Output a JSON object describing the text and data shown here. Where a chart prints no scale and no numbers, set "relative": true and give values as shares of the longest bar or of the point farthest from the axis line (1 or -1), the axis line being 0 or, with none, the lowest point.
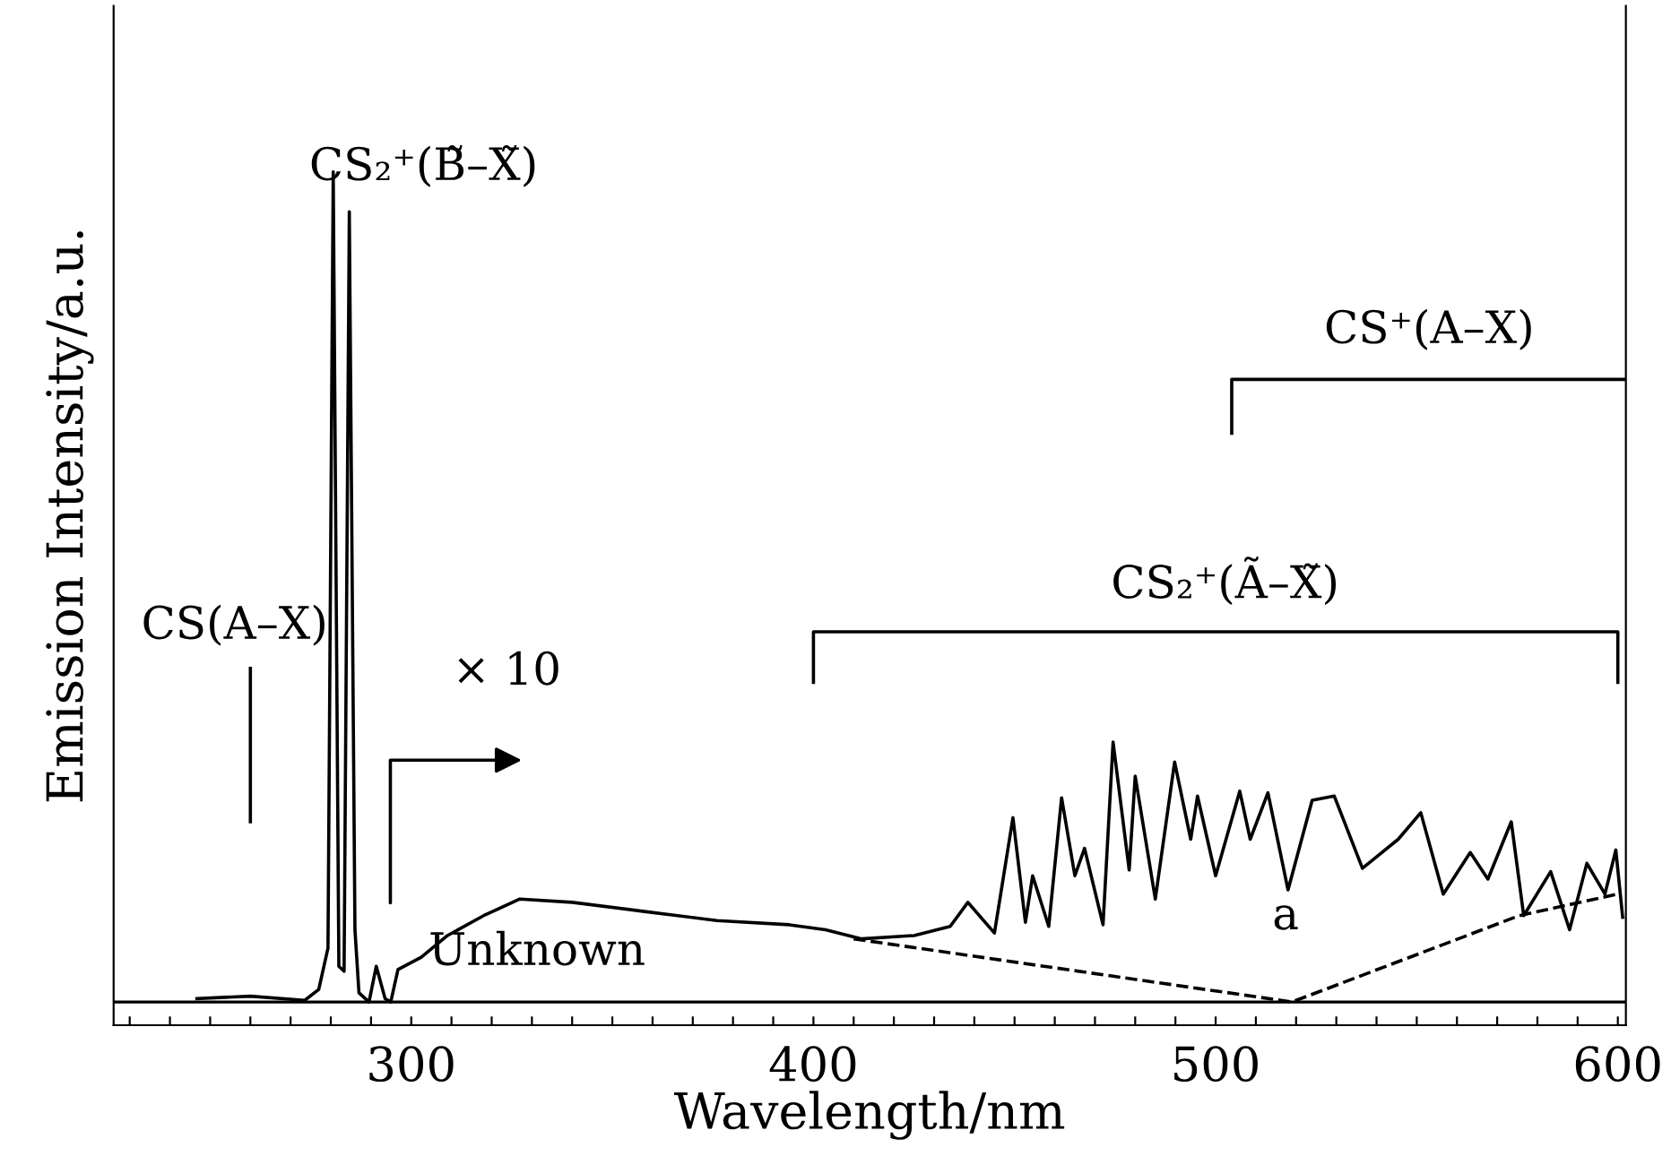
{
  "chart_data": {
    "type": "line",
    "relative": true,
    "xlabel": "Wavelength/nm",
    "ylabel": "Emission Intensity/a.u.",
    "xlim": [
      226,
      602
    ],
    "xticks": [
      {
        "value": 230,
        "label": null
      },
      {
        "value": 240,
        "label": null
      },
      {
        "value": 250,
        "label": null
      },
      {
        "value": 260,
        "label": null
      },
      {
        "value": 270,
        "label": null
      },
      {
        "value": 280,
        "label": null
      },
      {
        "value": 290,
        "label": null
      },
      300,
      {
        "value": 310,
        "label": null
      },
      {
        "value": 320,
        "label": null
      },
      {
        "value": 330,
        "label": null
      },
      {
        "value": 340,
        "label": null
      },
      {
        "value": 350,
        "label": null
      },
      {
        "value": 360,
        "label": null
      },
      {
        "value": 370,
        "label": null
      },
      {
        "value": 380,
        "label": null
      },
      {
        "value": 390,
        "label": null
      },
      400,
      {
        "value": 410,
        "label": null
      },
      {
        "value": 420,
        "label": null
      },
      {
        "value": 430,
        "label": null
      },
      {
        "value": 440,
        "label": null
      },
      {
        "value": 450,
        "label": null
      },
      {
        "value": 460,
        "label": null
      },
      {
        "value": 470,
        "label": null
      },
      {
        "value": 480,
        "label": null
      },
      {
        "value": 490,
        "label": null
      },
      500,
      {
        "value": 510,
        "label": null
      },
      {
        "value": 520,
        "label": null
      },
      {
        "value": 530,
        "label": null
      },
      {
        "value": 540,
        "label": null
      },
      {
        "value": 550,
        "label": null
      },
      {
        "value": 560,
        "label": null
      },
      {
        "value": 570,
        "label": null
      },
      {
        "value": 580,
        "label": null
      },
      {
        "value": 590,
        "label": null
      },
      600
    ],
    "tick_labels": "x",
    "grid": false,
    "legend": false,
    "ref_lines": [
      {
        "axis": "y",
        "value": 0,
        "color": "#000000",
        "line_style": "solid"
      }
    ],
    "series": [
      {
        "color": "#000000",
        "line_style": "solid",
        "x": [
          246.7,
          260,
          273.5,
          277,
          279.3,
          280.6,
          282,
          283.3,
          284.6,
          286,
          287,
          289.5,
          291.3,
          293.5,
          294.9,
          296.7,
          302.5,
          309,
          318,
          327,
          340,
          358,
          376,
          394,
          403,
          412,
          425,
          434,
          438.4,
          445,
          449.6,
          452.7,
          454.5,
          458.5,
          461.7,
          465,
          467.4,
          472,
          474.5,
          478.5,
          480,
          485,
          489.8,
          493.8,
          495.5,
          500,
          506,
          508.6,
          513,
          518,
          524,
          529.5,
          536.5,
          545.4,
          551,
          556.6,
          563.3,
          567.7,
          573.5,
          576.6,
          583.3,
          588,
          592.3,
          596.8,
          599.5,
          601.2
        ],
        "values": [
          0.004,
          0.007,
          0.002,
          0.015,
          0.065,
          1.0,
          0.043,
          0.037,
          0.952,
          0.087,
          0.011,
          0.0,
          0.043,
          0.004,
          0.0,
          0.039,
          0.054,
          0.08,
          0.104,
          0.124,
          0.12,
          0.109,
          0.098,
          0.093,
          0.087,
          0.076,
          0.08,
          0.091,
          0.12,
          0.083,
          0.222,
          0.096,
          0.152,
          0.091,
          0.246,
          0.152,
          0.185,
          0.093,
          0.313,
          0.159,
          0.272,
          0.124,
          0.289,
          0.196,
          0.248,
          0.152,
          0.254,
          0.196,
          0.252,
          0.135,
          0.243,
          0.248,
          0.161,
          0.196,
          0.228,
          0.13,
          0.18,
          0.148,
          0.217,
          0.104,
          0.157,
          0.087,
          0.167,
          0.13,
          0.183,
          0.102
        ]
      },
      {
        "color": "#000000",
        "line_style": "dashed",
        "x": [
          410,
          519,
          575.5,
          600
        ],
        "values": [
          0.076,
          0.0,
          0.104,
          0.13
        ]
      },
      {
        "color": "#000000",
        "line_style": "solid",
        "x": [
          260,
          260
        ],
        "values": [
          0.217,
          0.402
        ]
      },
      {
        "color": "#000000",
        "line_style": "solid",
        "x": [
          400,
          400,
          600,
          600
        ],
        "values": [
          0.385,
          0.446,
          0.446,
          0.385
        ]
      },
      {
        "color": "#000000",
        "line_style": "solid",
        "x": [
          504,
          504,
          602
        ],
        "values": [
          0.685,
          0.75,
          0.75
        ]
      }
    ],
    "annotations": [
      "CS(A–X)",
      "CS₂⁺(B̃–X̃)",
      "× 10",
      "Unknown",
      "CS₂⁺(Ã–X̃)",
      "CS⁺(A–X)",
      "a"
    ]
  }
}
